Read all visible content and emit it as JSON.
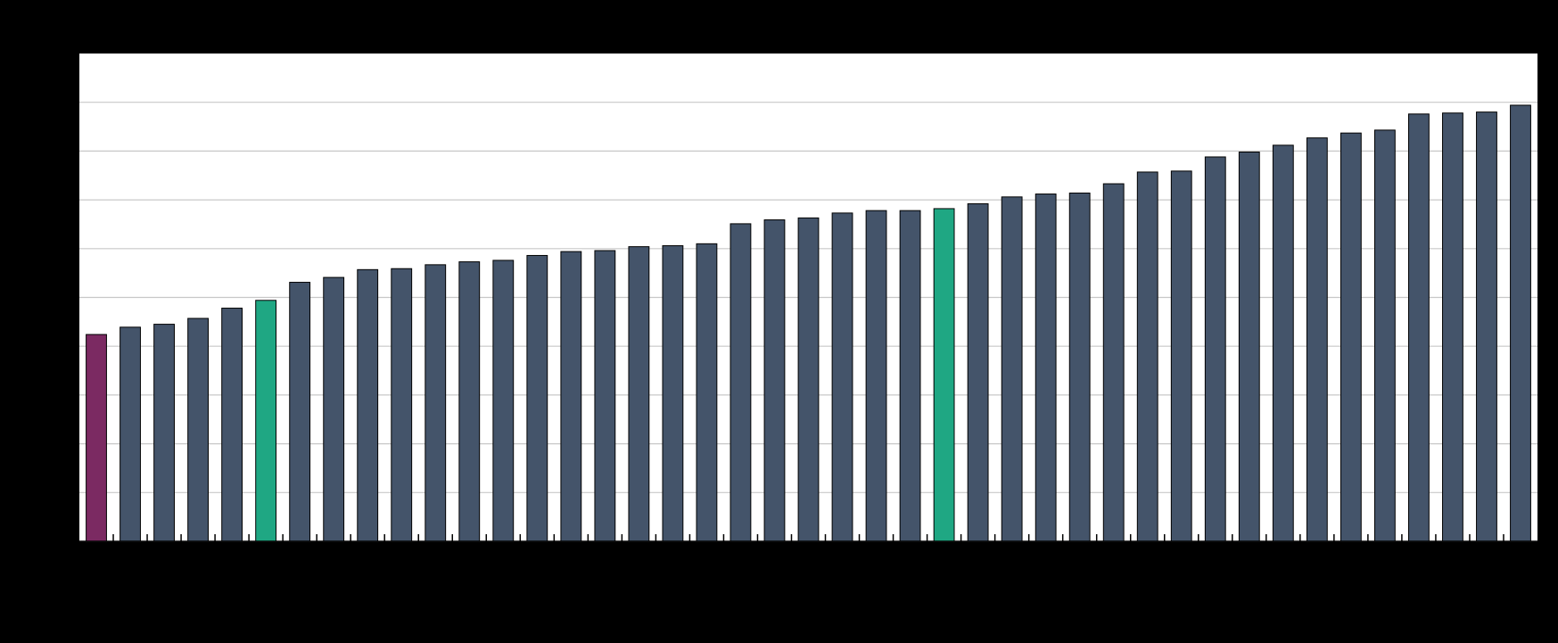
{
  "chart_data": {
    "type": "bar",
    "categories": [
      null,
      null,
      null,
      null,
      null,
      null,
      null,
      null,
      null,
      null,
      null,
      null,
      null,
      null,
      null,
      null,
      null,
      null,
      null,
      null,
      null,
      null,
      null,
      null,
      null,
      null,
      null,
      null,
      null,
      null,
      null,
      null,
      null,
      null,
      null,
      null,
      null,
      null,
      null,
      null,
      null,
      null,
      null
    ],
    "values": [
      4.24,
      4.39,
      4.45,
      4.57,
      4.78,
      4.94,
      5.31,
      5.41,
      5.57,
      5.59,
      5.67,
      5.73,
      5.76,
      5.86,
      5.94,
      5.96,
      6.04,
      6.06,
      6.1,
      6.51,
      6.59,
      6.63,
      6.73,
      6.78,
      6.78,
      6.82,
      6.92,
      7.06,
      7.12,
      7.14,
      7.33,
      7.57,
      7.59,
      7.88,
      7.98,
      8.12,
      8.27,
      8.37,
      8.43,
      8.76,
      8.78,
      8.8,
      8.94
    ],
    "colors": [
      "#7b2a62",
      "#44546a",
      "#44546a",
      "#44546a",
      "#44546a",
      "#1fa783",
      "#44546a",
      "#44546a",
      "#44546a",
      "#44546a",
      "#44546a",
      "#44546a",
      "#44546a",
      "#44546a",
      "#44546a",
      "#44546a",
      "#44546a",
      "#44546a",
      "#44546a",
      "#44546a",
      "#44546a",
      "#44546a",
      "#44546a",
      "#44546a",
      "#44546a",
      "#1fa783",
      "#44546a",
      "#44546a",
      "#44546a",
      "#44546a",
      "#44546a",
      "#44546a",
      "#44546a",
      "#44546a",
      "#44546a",
      "#44546a",
      "#44546a",
      "#44546a",
      "#44546a",
      "#44546a",
      "#44546a",
      "#44546a",
      "#44546a"
    ],
    "ylim": [
      0,
      10
    ],
    "yticks": [
      0,
      1,
      2,
      3,
      4,
      5,
      6,
      7,
      8,
      9
    ],
    "grid": true
  }
}
